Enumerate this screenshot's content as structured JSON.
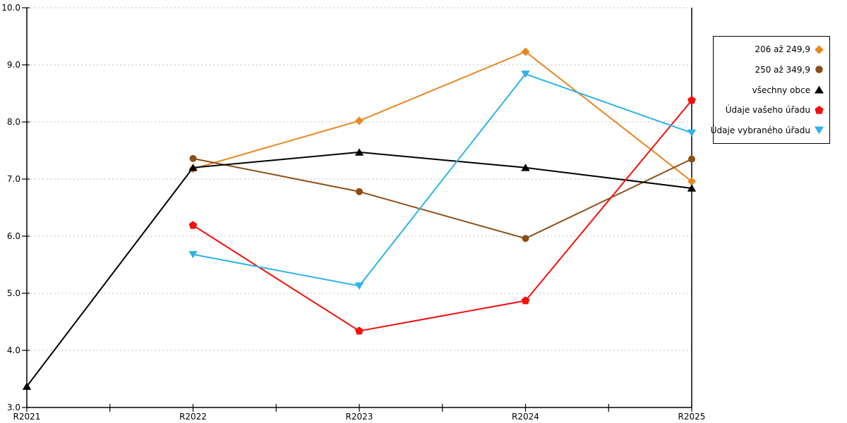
{
  "chart_data": {
    "type": "line",
    "title": "",
    "xlabel": "",
    "ylabel": "",
    "x": [
      "R2021",
      "R2022",
      "R2023",
      "R2024",
      "R2025"
    ],
    "ylim": [
      3.0,
      10.0
    ],
    "yticks": [
      3,
      4,
      5,
      6,
      7,
      8,
      9,
      10
    ],
    "ytick_labels": [
      "3.0",
      "4.0",
      "5.0",
      "6.0",
      "7.0",
      "8.0",
      "9.0",
      "10.0"
    ],
    "grid": "horizontal dotted gridlines at each y tick",
    "legend_position": "outside top-right box",
    "series": [
      {
        "name": "206 až 249,9",
        "marker": "diamond",
        "color": "#E8871E",
        "values": [
          null,
          7.18,
          8.02,
          9.23,
          6.96
        ]
      },
      {
        "name": "250 až 349,9",
        "marker": "circle",
        "color": "#8C4E15",
        "values": [
          null,
          7.36,
          6.78,
          5.96,
          7.35
        ]
      },
      {
        "name": "všechny obce",
        "marker": "triangle-up",
        "color": "#000000",
        "values": [
          3.37,
          7.2,
          7.47,
          7.2,
          6.84
        ]
      },
      {
        "name": "Údaje vašeho úřadu",
        "marker": "pentagon",
        "color": "#F5100C",
        "values": [
          null,
          6.19,
          4.34,
          4.87,
          8.38
        ]
      },
      {
        "name": "Údaje vybraného úřadu",
        "marker": "triangle-down",
        "color": "#2EB2E9",
        "values": [
          null,
          5.68,
          5.13,
          8.84,
          7.81
        ]
      }
    ]
  },
  "style": {
    "grid_color": "#BDBDBD",
    "axis_color": "#000000",
    "text_color": "#000000",
    "background": "#FFFFFF"
  }
}
